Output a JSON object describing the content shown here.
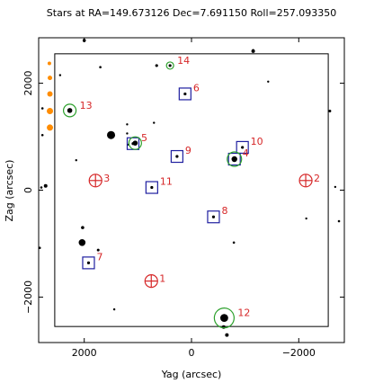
{
  "chart_data": {
    "type": "scatter",
    "title": "Stars at RA=149.673126 Dec=7.691150 Roll=257.093350",
    "xlabel": "Yag (arcsec)",
    "ylabel": "Zag (arcsec)",
    "xlim": [
      2850,
      -2850
    ],
    "ylim": [
      -2850,
      2850
    ],
    "xticks": [
      {
        "value": 2000,
        "label": "2000"
      },
      {
        "value": 0,
        "label": "0"
      },
      {
        "value": -2000,
        "label": "−2000"
      }
    ],
    "yticks": [
      {
        "value": 2000,
        "label": "2000"
      },
      {
        "value": 0,
        "label": "0"
      },
      {
        "value": -2000,
        "label": "−2000"
      }
    ],
    "fov_box": {
      "y_min": -2550,
      "y_max": 2550,
      "z_min": -2550,
      "z_max": 2550
    },
    "colors": {
      "guide": "#2ca02c",
      "acq": "#1f1fa0",
      "fid": "#d62728",
      "label": "#d62728",
      "bad": "#ff8c00",
      "star": "#000000"
    },
    "guide_stars": [
      {
        "id": "12",
        "y": -610,
        "z": -2390,
        "r": 11
      },
      {
        "id": "13",
        "y": 2270,
        "z": 1490,
        "r": 7
      },
      {
        "id": "14",
        "y": 400,
        "z": 2330,
        "r": 4
      },
      {
        "id": "4",
        "y": -800,
        "z": 580,
        "r": 8
      },
      {
        "id": "5",
        "y": 1050,
        "z": 880,
        "r": 7
      }
    ],
    "acq_stars": [
      {
        "id": "4",
        "y": -800,
        "z": 580
      },
      {
        "id": "5",
        "y": 1090,
        "z": 870
      },
      {
        "id": "6",
        "y": 120,
        "z": 1800
      },
      {
        "id": "7",
        "y": 1920,
        "z": -1360
      },
      {
        "id": "8",
        "y": -410,
        "z": -500
      },
      {
        "id": "9",
        "y": 270,
        "z": 630
      },
      {
        "id": "10",
        "y": -950,
        "z": 800
      },
      {
        "id": "11",
        "y": 740,
        "z": 50
      }
    ],
    "fid_lights": [
      {
        "id": "1",
        "y": 750,
        "z": -1700
      },
      {
        "id": "2",
        "y": -2130,
        "z": 180
      },
      {
        "id": "3",
        "y": 1790,
        "z": 180
      }
    ],
    "field_stars": [
      {
        "y": 2000,
        "z": 2800,
        "s": 1.8
      },
      {
        "y": 1700,
        "z": 2300,
        "s": 1.3
      },
      {
        "y": 650,
        "z": 2330,
        "s": 1.6
      },
      {
        "y": -1150,
        "z": 2600,
        "s": 2.0
      },
      {
        "y": 2450,
        "z": 2150,
        "s": 1.2
      },
      {
        "y": 2780,
        "z": 1530,
        "s": 1.3
      },
      {
        "y": -1430,
        "z": 2030,
        "s": 1.2
      },
      {
        "y": -2580,
        "z": 1480,
        "s": 1.5
      },
      {
        "y": 1200,
        "z": 1230,
        "s": 1.2
      },
      {
        "y": 1500,
        "z": 1030,
        "s": 4.5
      },
      {
        "y": 1200,
        "z": 1060,
        "s": 1.2
      },
      {
        "y": 700,
        "z": 1260,
        "s": 1.2
      },
      {
        "y": 2780,
        "z": 1030,
        "s": 1.3
      },
      {
        "y": 2150,
        "z": 560,
        "s": 1.2
      },
      {
        "y": 2720,
        "z": 80,
        "s": 2.0
      },
      {
        "y": 2800,
        "z": 50,
        "s": 1.3
      },
      {
        "y": -2680,
        "z": 60,
        "s": 1.2
      },
      {
        "y": -2750,
        "z": -580,
        "s": 1.3
      },
      {
        "y": -2140,
        "z": -530,
        "s": 1.2
      },
      {
        "y": 2030,
        "z": -700,
        "s": 1.8
      },
      {
        "y": 2040,
        "z": -980,
        "s": 3.8
      },
      {
        "y": 2830,
        "z": -1080,
        "s": 1.3
      },
      {
        "y": 1740,
        "z": -1120,
        "s": 1.5
      },
      {
        "y": -790,
        "z": -980,
        "s": 1.3
      },
      {
        "y": 1440,
        "z": -2230,
        "s": 1.2
      },
      {
        "y": -600,
        "z": -2560,
        "s": 2.0
      },
      {
        "y": -660,
        "z": -2710,
        "s": 2.0
      },
      {
        "y": 1190,
        "z": 850,
        "s": 1.2
      },
      {
        "y": -1150,
        "z": 2620,
        "s": 1.2
      }
    ],
    "bad_stars": [
      {
        "y": 2650,
        "z": 2370,
        "s": 2.0
      },
      {
        "y": 2640,
        "z": 2100,
        "s": 2.5
      },
      {
        "y": 2640,
        "z": 1800,
        "s": 3.0
      },
      {
        "y": 2640,
        "z": 1480,
        "s": 3.5
      },
      {
        "y": 2640,
        "z": 1170,
        "s": 3.5
      }
    ]
  }
}
